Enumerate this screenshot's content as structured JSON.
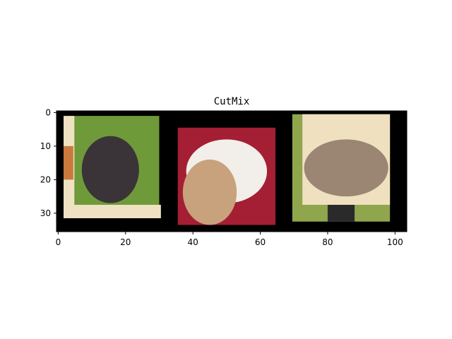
{
  "chart_data": {
    "type": "image",
    "title": "CutMix",
    "xlabel": "",
    "ylabel": "",
    "xlim": [
      -0.5,
      103.5
    ],
    "ylim": [
      35.5,
      -0.5
    ],
    "xticks": [
      0,
      20,
      40,
      60,
      80,
      100
    ],
    "xtick_labels": [
      "0",
      "20",
      "40",
      "60",
      "80",
      "100"
    ],
    "yticks": [
      0,
      10,
      20,
      30
    ],
    "ytick_labels": [
      "0",
      "10",
      "20",
      "30"
    ],
    "grid": false,
    "background_color": "#000000",
    "tiles": [
      {
        "name": "monkey-tile",
        "x_range": [
          3,
          30
        ],
        "y_range": [
          1,
          31
        ],
        "base_color": "#6f9a3a",
        "patches": [
          {
            "name": "cream-border-left",
            "x_range": [
              1.6,
              4.8
            ],
            "y_range": [
              1,
              31.5
            ],
            "color": "#efe2c2"
          },
          {
            "name": "cream-border-bottom",
            "x_range": [
              1.6,
              30.5
            ],
            "y_range": [
              27.5,
              31.5
            ],
            "color": "#efe2c2"
          },
          {
            "name": "orange-fragment",
            "x_range": [
              1.6,
              4.5
            ],
            "y_range": [
              10,
              20
            ],
            "color": "#c97a3c"
          },
          {
            "name": "monkey-body",
            "x_range": [
              7,
              24
            ],
            "y_range": [
              7,
              27
            ],
            "color": "#3a3438"
          }
        ]
      },
      {
        "name": "hamster-tile",
        "x_range": [
          35.5,
          64.5
        ],
        "y_range": [
          4.5,
          33.5
        ],
        "base_color": "#a41f33",
        "patches": [
          {
            "name": "hamster-white-body",
            "x_range": [
              38,
              62
            ],
            "y_range": [
              8,
              27
            ],
            "color": "#f2eeea"
          },
          {
            "name": "hamster-face",
            "x_range": [
              37,
              53
            ],
            "y_range": [
              14,
              33.5
            ],
            "color": "#c8a27c"
          }
        ]
      },
      {
        "name": "fish-tile",
        "x_range": [
          69.5,
          98.5
        ],
        "y_range": [
          0.5,
          32.5
        ],
        "base_color": "#8fa64c",
        "patches": [
          {
            "name": "fish-background",
            "x_range": [
              72.5,
              98.5
            ],
            "y_range": [
              0.5,
              27.5
            ],
            "color": "#efe0c0"
          },
          {
            "name": "fish-body",
            "x_range": [
              73,
              98
            ],
            "y_range": [
              8,
              25
            ],
            "color": "#9a8672"
          },
          {
            "name": "dark-bottom-fragment",
            "x_range": [
              80,
              88
            ],
            "y_range": [
              27.5,
              32.5
            ],
            "color": "#2a2a2a"
          }
        ]
      }
    ]
  }
}
